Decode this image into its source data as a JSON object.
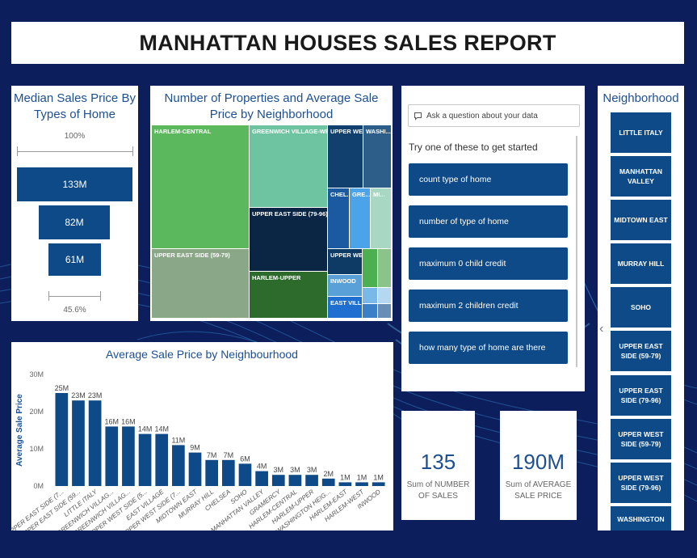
{
  "report": {
    "title": "MANHATTAN HOUSES SALES REPORT"
  },
  "funnel": {
    "title": "Median Sales Price By Types of Home",
    "top_pct": "100%",
    "bottom_pct": "45.6%",
    "bars": [
      {
        "label": "133M",
        "value": 133
      },
      {
        "label": "82M",
        "value": 82
      },
      {
        "label": "61M",
        "value": 61
      }
    ]
  },
  "treemap": {
    "title": "Number of Properties and Average Sale Price by Neighborhood",
    "tiles": [
      {
        "label": "HARLEM-CENTRAL",
        "color": "#5cb85c"
      },
      {
        "label": "GREENWICH VILLAGE-WEST",
        "color": "#6ec4a0"
      },
      {
        "label": "UPPER WE...",
        "color": "#12406e"
      },
      {
        "label": "WASHI...",
        "color": "#2d5e8a"
      },
      {
        "label": "UPPER EAST SIDE (79-96)",
        "color": "#0b2545"
      },
      {
        "label": "CHEL...",
        "color": "#1b5aa0"
      },
      {
        "label": "GRE...",
        "color": "#4da3e8"
      },
      {
        "label": "MI...",
        "color": "#a8d8c4"
      },
      {
        "label": "UPPER EAST SIDE (59-79)",
        "color": "#8aa888"
      },
      {
        "label": "HARLEM-UPPER",
        "color": "#2d6b2d"
      },
      {
        "label": "UPPER WE...",
        "color": "#0e3a66"
      },
      {
        "label": "INWOOD",
        "color": "#5aa0d8"
      },
      {
        "label": "EAST VILL...",
        "color": "#1f6fd0"
      },
      {
        "label": "",
        "color": "#4caf50"
      },
      {
        "label": "",
        "color": "#8bc48a"
      },
      {
        "label": "",
        "color": "#7ab8e8"
      },
      {
        "label": "",
        "color": "#b5d8f0"
      },
      {
        "label": "",
        "color": "#3d7ec8"
      },
      {
        "label": "",
        "color": "#6a8db5"
      }
    ]
  },
  "qa": {
    "placeholder": "Ask a question about your data",
    "hint": "Try one of these to get started",
    "suggestions": [
      "count type of home",
      "number of type of home",
      "maximum 0 child credit",
      "maximum 2 children credit",
      "how many type of home are there"
    ]
  },
  "slicer": {
    "title": "Neighborhood",
    "items": [
      "LITTLE ITALY",
      "MANHATTAN VALLEY",
      "MIDTOWN EAST",
      "MURRAY HILL",
      "SOHO",
      "UPPER EAST SIDE (59-79)",
      "UPPER EAST SIDE (79-96)",
      "UPPER WEST SIDE (59-79)",
      "UPPER WEST SIDE (79-96)",
      "WASHINGTON"
    ]
  },
  "cards": [
    {
      "value": "135",
      "label": "Sum of NUMBER OF SALES"
    },
    {
      "value": "190M",
      "label": "Sum of AVERAGE SALE PRICE"
    }
  ],
  "chart_data": {
    "type": "bar",
    "title": "Average Sale Price by Neighbourhood",
    "ylabel": "Average Sale Price",
    "xlabel": "",
    "ylim": [
      0,
      30
    ],
    "yticks": [
      "0M",
      "10M",
      "20M",
      "30M"
    ],
    "categories": [
      "UPPER EAST SIDE (7...",
      "UPPER EAST SIDE (59...",
      "LITTLE ITALY",
      "GREENWICH VILLAG...",
      "GREENWICH VILLAG...",
      "UPPER WEST SIDE (5...",
      "EAST VILLAGE",
      "UPPER WEST SIDE (7...",
      "MIDTOWN EAST",
      "MURRAY HILL",
      "CHELSEA",
      "SOHO",
      "MANHATTAN VALLEY",
      "GRAMERCY",
      "HARLEM-CENTRAL",
      "HARLEM-UPPER",
      "WASHINGTON HEIG...",
      "HARLEM-EAST",
      "HARLEM-WEST",
      "INWOOD"
    ],
    "values": [
      25,
      23,
      23,
      16,
      16,
      14,
      14,
      11,
      9,
      7,
      7,
      6,
      4,
      3,
      3,
      3,
      2,
      1,
      1,
      1
    ],
    "labels": [
      "25M",
      "23M",
      "23M",
      "16M",
      "16M",
      "14M",
      "14M",
      "11M",
      "9M",
      "7M",
      "7M",
      "6M",
      "4M",
      "3M",
      "3M",
      "3M",
      "2M",
      "1M",
      "1M",
      "1M"
    ],
    "bar_color": "#0e4a88"
  }
}
